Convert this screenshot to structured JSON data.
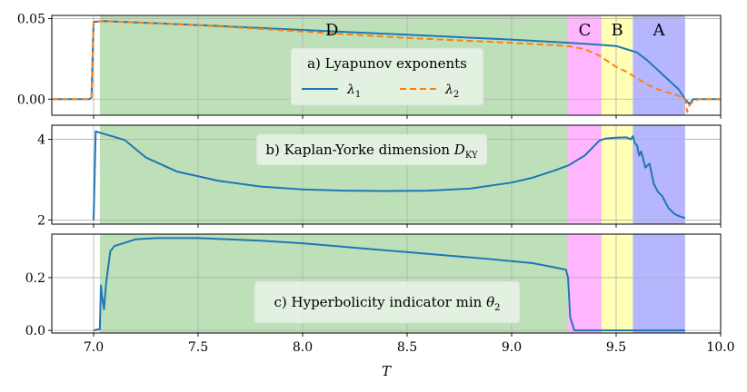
{
  "figure": {
    "xlabel": "T",
    "xlim": [
      6.8,
      10.0
    ],
    "xticks": [
      7.0,
      7.5,
      8.0,
      8.5,
      9.0,
      9.5,
      10.0
    ],
    "xtick_labels": [
      "7.0",
      "7.5",
      "8.0",
      "8.5",
      "9.0",
      "9.5",
      "10.0"
    ]
  },
  "colors": {
    "series1": "#1f77b4",
    "series2": "#ff7f0e",
    "region_D": "#a8d5a2",
    "region_C": "#ff9eff",
    "region_B": "#ffff9e",
    "region_A": "#9e9eff",
    "legend_bg": "#eaf3e8"
  },
  "regions": [
    {
      "label": "D",
      "x0": 7.03,
      "x1": 9.27,
      "color_key": "region_D"
    },
    {
      "label": "C",
      "x0": 9.27,
      "x1": 9.43,
      "color_key": "region_C"
    },
    {
      "label": "B",
      "x0": 9.43,
      "x1": 9.58,
      "color_key": "region_B"
    },
    {
      "label": "A",
      "x0": 9.58,
      "x1": 9.83,
      "color_key": "region_A"
    }
  ],
  "chart_data": [
    {
      "type": "line",
      "title": "a) Lyapunov exponents",
      "ylim": [
        -0.01,
        0.052
      ],
      "yticks": [
        0.0,
        0.05
      ],
      "ytick_labels": [
        "0.00",
        "0.05"
      ],
      "show_region_labels": true,
      "legend": [
        {
          "label": "λ1",
          "main": "λ",
          "sub": "1",
          "style": "solid",
          "color_key": "series1"
        },
        {
          "label": "λ2",
          "main": "λ",
          "sub": "2",
          "style": "dashed",
          "color_key": "series2"
        }
      ],
      "series": [
        {
          "name": "λ1",
          "style": "solid",
          "color_key": "series1",
          "x": [
            6.8,
            6.98,
            6.99,
            7.0,
            7.05,
            7.5,
            8.0,
            8.5,
            9.0,
            9.27,
            9.4,
            9.5,
            9.55,
            9.6,
            9.65,
            9.7,
            9.75,
            9.8,
            9.83,
            9.85,
            9.87,
            10.0
          ],
          "y": [
            0.0,
            0.0,
            0.001,
            0.048,
            0.0485,
            0.046,
            0.043,
            0.04,
            0.037,
            0.035,
            0.034,
            0.033,
            0.031,
            0.029,
            0.024,
            0.018,
            0.012,
            0.006,
            0.0,
            -0.003,
            0.0,
            0.0
          ]
        },
        {
          "name": "λ2",
          "style": "dashed",
          "color_key": "series2",
          "x": [
            6.8,
            6.98,
            6.99,
            7.0,
            7.05,
            7.5,
            8.0,
            8.5,
            9.0,
            9.27,
            9.35,
            9.42,
            9.5,
            9.55,
            9.6,
            9.65,
            9.7,
            9.75,
            9.8,
            9.83,
            9.84,
            9.85,
            9.87,
            9.9,
            10.0
          ],
          "y": [
            0.0,
            0.0,
            0.001,
            0.048,
            0.0485,
            0.046,
            0.042,
            0.038,
            0.035,
            0.033,
            0.031,
            0.027,
            0.02,
            0.017,
            0.013,
            0.009,
            0.006,
            0.004,
            0.002,
            0.0,
            -0.008,
            -0.004,
            -0.001,
            0.0,
            0.0
          ]
        }
      ]
    },
    {
      "type": "line",
      "title_main": "b) Kaplan-Yorke dimension ",
      "title_math": "D",
      "title_sub": "KY",
      "ylim": [
        1.9,
        4.35
      ],
      "yticks": [
        2,
        4
      ],
      "ytick_labels": [
        "2",
        "4"
      ],
      "show_region_labels": false,
      "series": [
        {
          "name": "D_KY",
          "style": "solid",
          "color_key": "series1",
          "x": [
            7.0,
            7.01,
            7.02,
            7.1,
            7.15,
            7.25,
            7.4,
            7.6,
            7.8,
            8.0,
            8.2,
            8.4,
            8.6,
            8.8,
            9.0,
            9.1,
            9.2,
            9.27,
            9.35,
            9.42,
            9.45,
            9.5,
            9.55,
            9.57,
            9.58,
            9.59,
            9.6,
            9.61,
            9.62,
            9.64,
            9.66,
            9.68,
            9.7,
            9.72,
            9.75,
            9.78,
            9.8,
            9.83
          ],
          "y": [
            2.0,
            4.2,
            4.18,
            4.06,
            3.98,
            3.55,
            3.2,
            2.97,
            2.83,
            2.76,
            2.73,
            2.72,
            2.73,
            2.78,
            2.93,
            3.05,
            3.22,
            3.35,
            3.6,
            3.97,
            4.02,
            4.04,
            4.05,
            4.0,
            4.08,
            3.9,
            3.85,
            3.6,
            3.7,
            3.3,
            3.4,
            2.9,
            2.7,
            2.6,
            2.3,
            2.15,
            2.1,
            2.05
          ]
        }
      ]
    },
    {
      "type": "line",
      "title_main": "c) Hyperbolicity indicator min ",
      "title_math": "θ",
      "title_sub": "2",
      "ylim": [
        -0.01,
        0.365
      ],
      "yticks": [
        0.0,
        0.2
      ],
      "ytick_labels": [
        "0.0",
        "0.2"
      ],
      "show_region_labels": false,
      "series": [
        {
          "name": "min θ2",
          "style": "solid",
          "color_key": "series1",
          "x": [
            7.0,
            7.03,
            7.035,
            7.04,
            7.05,
            7.06,
            7.08,
            7.1,
            7.2,
            7.3,
            7.5,
            7.8,
            8.0,
            8.3,
            8.6,
            8.9,
            9.1,
            9.2,
            9.26,
            9.27,
            9.28,
            9.3,
            9.5,
            9.83
          ],
          "y": [
            0.0,
            0.005,
            0.17,
            0.13,
            0.08,
            0.18,
            0.3,
            0.32,
            0.345,
            0.35,
            0.35,
            0.34,
            0.33,
            0.31,
            0.29,
            0.27,
            0.255,
            0.24,
            0.23,
            0.2,
            0.05,
            0.0,
            0.0,
            0.0
          ]
        }
      ]
    }
  ]
}
